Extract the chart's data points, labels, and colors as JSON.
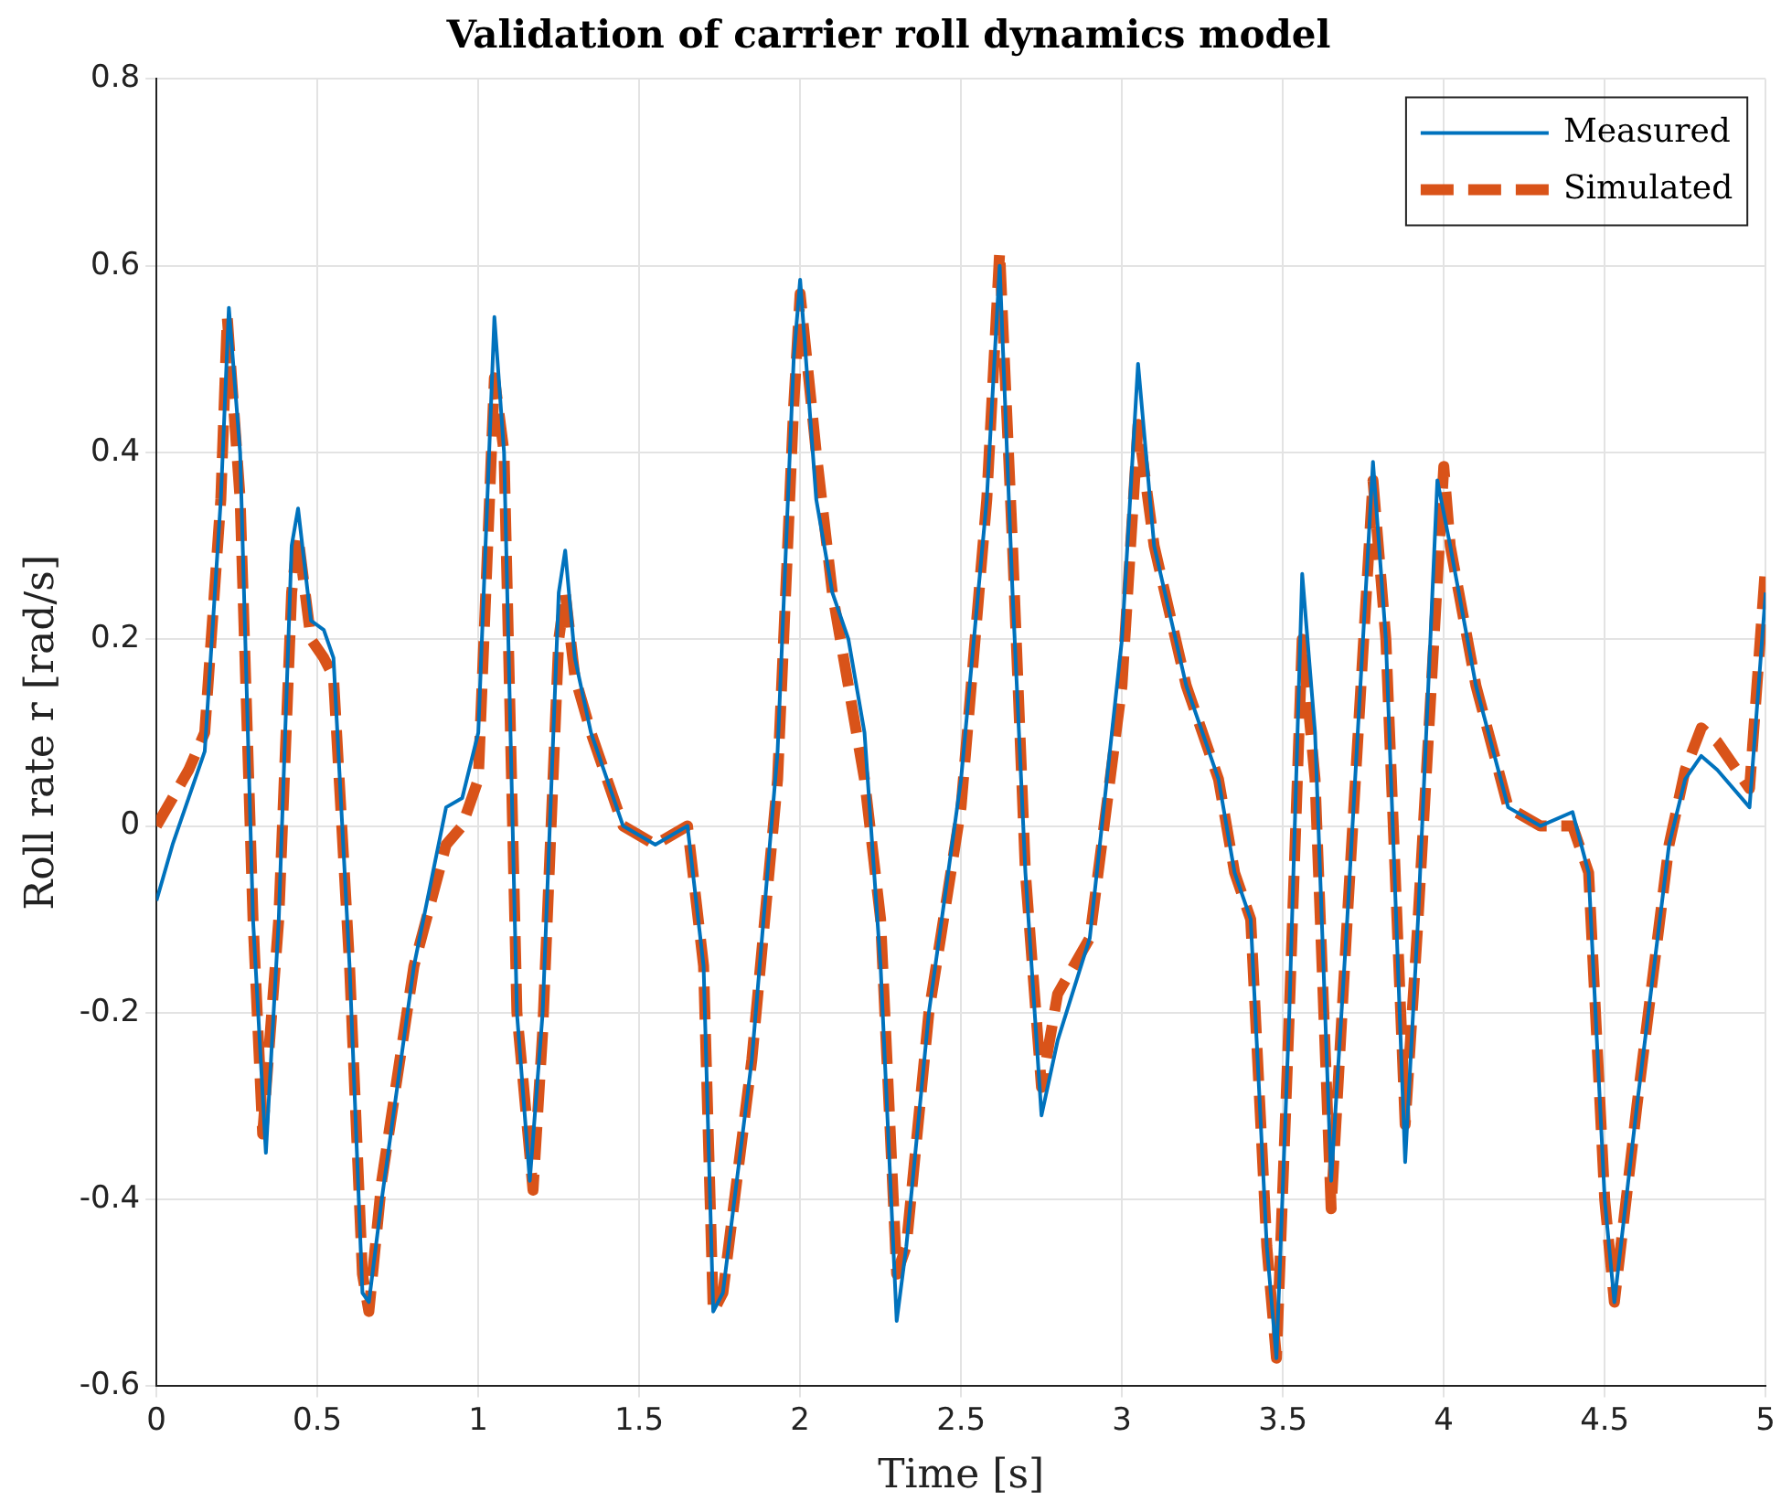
{
  "chart_data": {
    "type": "line",
    "title": "Validation of carrier roll dynamics model",
    "xlabel": "Time [s]",
    "ylabel": "Roll rate r [rad/s]",
    "xlim": [
      0,
      5
    ],
    "xticks": [
      0,
      0.5,
      1,
      1.5,
      2,
      2.5,
      3,
      3.5,
      4,
      4.5,
      5
    ],
    "ylim": [
      -0.6,
      0.8
    ],
    "yticks": [
      -0.6,
      -0.4,
      -0.2,
      0,
      0.2,
      0.4,
      0.6,
      0.8
    ],
    "grid": true,
    "legend": "top right",
    "marker": "none",
    "series": [
      {
        "name": "Measured",
        "color": "#0072bd",
        "line_style": "solid",
        "x": [
          0,
          0.05,
          0.1,
          0.15,
          0.2,
          0.225,
          0.26,
          0.3,
          0.34,
          0.38,
          0.42,
          0.44,
          0.48,
          0.52,
          0.55,
          0.6,
          0.64,
          0.66,
          0.7,
          0.8,
          0.9,
          0.95,
          1.0,
          1.05,
          1.08,
          1.12,
          1.16,
          1.2,
          1.25,
          1.27,
          1.3,
          1.35,
          1.45,
          1.55,
          1.65,
          1.7,
          1.73,
          1.76,
          1.85,
          1.93,
          1.98,
          2.0,
          2.05,
          2.1,
          2.15,
          2.2,
          2.25,
          2.3,
          2.33,
          2.4,
          2.5,
          2.58,
          2.62,
          2.66,
          2.7,
          2.75,
          2.8,
          2.9,
          3.0,
          3.05,
          3.1,
          3.2,
          3.3,
          3.35,
          3.4,
          3.45,
          3.48,
          3.52,
          3.56,
          3.6,
          3.65,
          3.7,
          3.78,
          3.82,
          3.88,
          3.92,
          3.98,
          4.02,
          4.1,
          4.2,
          4.3,
          4.4,
          4.45,
          4.5,
          4.53,
          4.6,
          4.7,
          4.75,
          4.8,
          4.85,
          4.95,
          5.0
        ],
        "values": [
          -0.08,
          -0.02,
          0.03,
          0.08,
          0.35,
          0.555,
          0.4,
          -0.1,
          -0.35,
          -0.1,
          0.3,
          0.34,
          0.22,
          0.21,
          0.18,
          -0.15,
          -0.5,
          -0.51,
          -0.4,
          -0.15,
          0.02,
          0.03,
          0.1,
          0.545,
          0.4,
          -0.2,
          -0.38,
          -0.2,
          0.25,
          0.295,
          0.18,
          0.1,
          0.0,
          -0.02,
          0.0,
          -0.15,
          -0.52,
          -0.5,
          -0.25,
          0.08,
          0.5,
          0.585,
          0.35,
          0.25,
          0.2,
          0.1,
          -0.15,
          -0.53,
          -0.45,
          -0.2,
          0.05,
          0.35,
          0.6,
          0.25,
          -0.05,
          -0.31,
          -0.23,
          -0.12,
          0.2,
          0.495,
          0.3,
          0.15,
          0.05,
          -0.05,
          -0.1,
          -0.45,
          -0.57,
          -0.2,
          0.27,
          0.1,
          -0.38,
          -0.1,
          0.39,
          0.2,
          -0.36,
          -0.1,
          0.37,
          0.3,
          0.15,
          0.02,
          0.0,
          0.015,
          -0.05,
          -0.4,
          -0.51,
          -0.3,
          -0.02,
          0.05,
          0.075,
          0.06,
          0.02,
          0.25
        ]
      },
      {
        "name": "Simulated",
        "color": "#d95319",
        "line_style": "dashed",
        "x": [
          0,
          0.05,
          0.1,
          0.15,
          0.2,
          0.22,
          0.26,
          0.3,
          0.33,
          0.38,
          0.42,
          0.44,
          0.48,
          0.52,
          0.55,
          0.6,
          0.64,
          0.66,
          0.7,
          0.8,
          0.9,
          0.95,
          1.0,
          1.05,
          1.08,
          1.12,
          1.17,
          1.2,
          1.25,
          1.27,
          1.3,
          1.35,
          1.45,
          1.55,
          1.65,
          1.7,
          1.73,
          1.76,
          1.85,
          1.93,
          1.98,
          2.0,
          2.05,
          2.1,
          2.15,
          2.2,
          2.25,
          2.3,
          2.33,
          2.4,
          2.5,
          2.58,
          2.62,
          2.66,
          2.7,
          2.75,
          2.8,
          2.9,
          3.0,
          3.05,
          3.1,
          3.2,
          3.3,
          3.35,
          3.4,
          3.45,
          3.48,
          3.52,
          3.56,
          3.6,
          3.65,
          3.7,
          3.78,
          3.82,
          3.88,
          3.92,
          4.0,
          4.02,
          4.1,
          4.2,
          4.3,
          4.4,
          4.45,
          4.5,
          4.53,
          4.6,
          4.7,
          4.75,
          4.8,
          4.85,
          4.95,
          5.0
        ],
        "values": [
          0.0,
          0.03,
          0.06,
          0.1,
          0.35,
          0.545,
          0.35,
          -0.1,
          -0.33,
          -0.1,
          0.25,
          0.31,
          0.2,
          0.18,
          0.16,
          -0.15,
          -0.48,
          -0.52,
          -0.38,
          -0.15,
          -0.02,
          0.0,
          0.05,
          0.48,
          0.4,
          -0.2,
          -0.39,
          -0.22,
          0.2,
          0.25,
          0.16,
          0.1,
          0.0,
          -0.02,
          0.0,
          -0.15,
          -0.52,
          -0.5,
          -0.25,
          0.05,
          0.45,
          0.57,
          0.4,
          0.25,
          0.15,
          0.05,
          -0.1,
          -0.48,
          -0.45,
          -0.2,
          0.02,
          0.35,
          0.615,
          0.3,
          -0.05,
          -0.28,
          -0.18,
          -0.12,
          0.15,
          0.43,
          0.3,
          0.15,
          0.05,
          -0.05,
          -0.1,
          -0.45,
          -0.57,
          -0.2,
          0.2,
          0.05,
          -0.41,
          -0.1,
          0.37,
          0.2,
          -0.32,
          -0.1,
          0.385,
          0.3,
          0.15,
          0.02,
          0.0,
          0.0,
          -0.05,
          -0.4,
          -0.51,
          -0.3,
          -0.02,
          0.06,
          0.105,
          0.09,
          0.04,
          0.28
        ]
      }
    ]
  }
}
